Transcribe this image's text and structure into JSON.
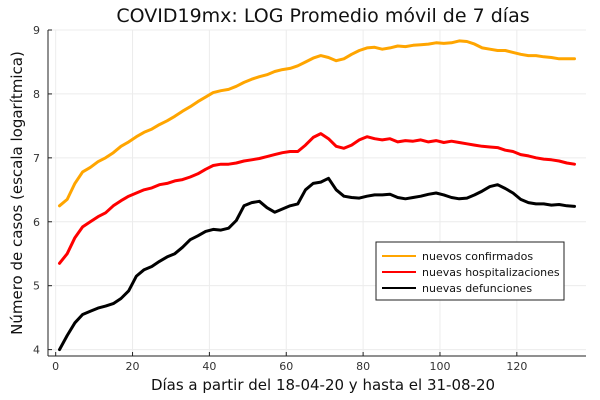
{
  "chart_data": {
    "type": "line",
    "title": "COVID19mx: LOG Promedio móvil de 7 días",
    "xlabel": "Días a partir del 18-04-20 y hasta el 31-08-20",
    "ylabel": "Número de casos (escala logarítmica)",
    "xlim": [
      -2,
      138
    ],
    "ylim": [
      3.9,
      9.0
    ],
    "xticks": [
      0,
      20,
      40,
      60,
      80,
      100,
      120
    ],
    "yticks": [
      4,
      5,
      6,
      7,
      8,
      9
    ],
    "grid": true,
    "legend_position": "lower-right",
    "series": [
      {
        "name": "nuevos confirmados",
        "color": "#FFA500",
        "x": [
          1,
          3,
          5,
          7,
          9,
          11,
          13,
          15,
          17,
          19,
          21,
          23,
          25,
          27,
          29,
          31,
          33,
          35,
          37,
          39,
          41,
          43,
          45,
          47,
          49,
          51,
          53,
          55,
          57,
          59,
          61,
          63,
          65,
          67,
          69,
          71,
          73,
          75,
          77,
          79,
          81,
          83,
          85,
          87,
          89,
          91,
          93,
          95,
          97,
          99,
          101,
          103,
          105,
          107,
          109,
          111,
          113,
          115,
          117,
          119,
          121,
          123,
          125,
          127,
          129,
          131,
          133,
          135
        ],
        "y": [
          6.25,
          6.35,
          6.6,
          6.78,
          6.85,
          6.94,
          7.0,
          7.08,
          7.18,
          7.25,
          7.33,
          7.4,
          7.45,
          7.52,
          7.58,
          7.65,
          7.73,
          7.8,
          7.88,
          7.95,
          8.02,
          8.05,
          8.07,
          8.12,
          8.18,
          8.23,
          8.27,
          8.3,
          8.35,
          8.38,
          8.4,
          8.44,
          8.5,
          8.56,
          8.6,
          8.57,
          8.52,
          8.55,
          8.62,
          8.68,
          8.72,
          8.73,
          8.7,
          8.72,
          8.75,
          8.74,
          8.76,
          8.77,
          8.78,
          8.8,
          8.79,
          8.8,
          8.83,
          8.82,
          8.78,
          8.72,
          8.7,
          8.68,
          8.68,
          8.65,
          8.62,
          8.6,
          8.6,
          8.58,
          8.57,
          8.55,
          8.55,
          8.55
        ]
      },
      {
        "name": "nuevas hospitalizaciones",
        "color": "#FF0000",
        "x": [
          1,
          3,
          5,
          7,
          9,
          11,
          13,
          15,
          17,
          19,
          21,
          23,
          25,
          27,
          29,
          31,
          33,
          35,
          37,
          39,
          41,
          43,
          45,
          47,
          49,
          51,
          53,
          55,
          57,
          59,
          61,
          63,
          65,
          67,
          69,
          71,
          73,
          75,
          77,
          79,
          81,
          83,
          85,
          87,
          89,
          91,
          93,
          95,
          97,
          99,
          101,
          103,
          105,
          107,
          109,
          111,
          113,
          115,
          117,
          119,
          121,
          123,
          125,
          127,
          129,
          131,
          133,
          135
        ],
        "y": [
          5.35,
          5.5,
          5.75,
          5.92,
          6.0,
          6.08,
          6.14,
          6.25,
          6.33,
          6.4,
          6.45,
          6.5,
          6.53,
          6.58,
          6.6,
          6.64,
          6.66,
          6.7,
          6.75,
          6.82,
          6.88,
          6.9,
          6.9,
          6.92,
          6.95,
          6.97,
          6.99,
          7.02,
          7.05,
          7.08,
          7.1,
          7.1,
          7.2,
          7.32,
          7.38,
          7.3,
          7.18,
          7.15,
          7.2,
          7.28,
          7.33,
          7.3,
          7.28,
          7.3,
          7.25,
          7.27,
          7.26,
          7.28,
          7.25,
          7.27,
          7.24,
          7.26,
          7.24,
          7.22,
          7.2,
          7.18,
          7.17,
          7.16,
          7.12,
          7.1,
          7.05,
          7.03,
          7.0,
          6.98,
          6.97,
          6.95,
          6.92,
          6.9
        ]
      },
      {
        "name": "nuevas defunciones",
        "color": "#000000",
        "x": [
          1,
          3,
          5,
          7,
          9,
          11,
          13,
          15,
          17,
          19,
          21,
          23,
          25,
          27,
          29,
          31,
          33,
          35,
          37,
          39,
          41,
          43,
          45,
          47,
          49,
          51,
          53,
          55,
          57,
          59,
          61,
          63,
          65,
          67,
          69,
          71,
          73,
          75,
          77,
          79,
          81,
          83,
          85,
          87,
          89,
          91,
          93,
          95,
          97,
          99,
          101,
          103,
          105,
          107,
          109,
          111,
          113,
          115,
          117,
          119,
          121,
          123,
          125,
          127,
          129,
          131,
          133,
          135
        ],
        "y": [
          4.0,
          4.22,
          4.42,
          4.55,
          4.6,
          4.65,
          4.68,
          4.72,
          4.8,
          4.92,
          5.15,
          5.25,
          5.3,
          5.38,
          5.45,
          5.5,
          5.6,
          5.72,
          5.78,
          5.85,
          5.88,
          5.87,
          5.9,
          6.02,
          6.25,
          6.3,
          6.32,
          6.22,
          6.15,
          6.2,
          6.25,
          6.28,
          6.5,
          6.6,
          6.62,
          6.68,
          6.5,
          6.4,
          6.38,
          6.37,
          6.4,
          6.42,
          6.42,
          6.43,
          6.38,
          6.36,
          6.38,
          6.4,
          6.43,
          6.45,
          6.42,
          6.38,
          6.36,
          6.37,
          6.42,
          6.48,
          6.55,
          6.58,
          6.52,
          6.45,
          6.35,
          6.3,
          6.28,
          6.28,
          6.26,
          6.27,
          6.25,
          6.24
        ]
      }
    ]
  }
}
